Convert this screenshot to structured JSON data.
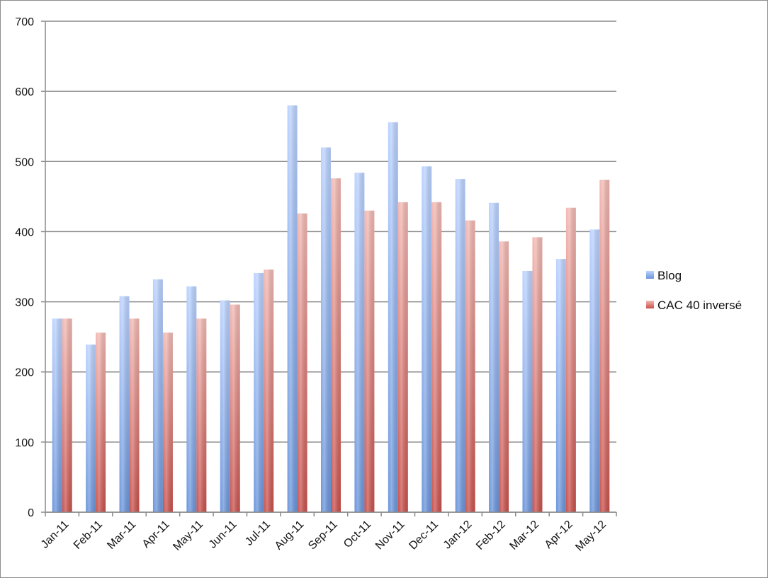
{
  "chart_data": {
    "type": "bar",
    "categories": [
      "Jan-11",
      "Feb-11",
      "Mar-11",
      "Apr-11",
      "May-11",
      "Jun-11",
      "Jul-11",
      "Aug-11",
      "Sep-11",
      "Oct-11",
      "Nov-11",
      "Dec-11",
      "Jan-12",
      "Feb-12",
      "Mar-12",
      "Apr-12",
      "May-12"
    ],
    "series": [
      {
        "name": "Blog",
        "color_top": "#bcd3ff",
        "color_bottom": "#6a95db",
        "values": [
          276,
          239,
          308,
          332,
          322,
          302,
          341,
          580,
          520,
          484,
          556,
          493,
          475,
          441,
          344,
          361,
          403
        ]
      },
      {
        "name": "CAC 40 inversé",
        "color_top": "#f2b9b3",
        "color_bottom": "#c9504b",
        "values": [
          276,
          256,
          276,
          256,
          276,
          296,
          346,
          426,
          476,
          430,
          442,
          442,
          416,
          386,
          392,
          434,
          474
        ]
      }
    ],
    "ylim": [
      0,
      700
    ],
    "yticks": [
      0,
      100,
      200,
      300,
      400,
      500,
      600,
      700
    ],
    "grid": true,
    "legend_position": "right",
    "title": "",
    "xlabel": "",
    "ylabel": ""
  }
}
